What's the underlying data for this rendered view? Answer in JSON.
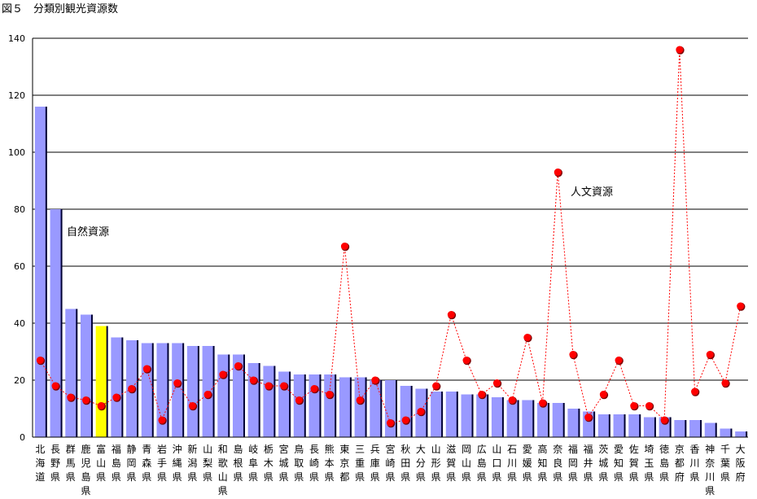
{
  "chart_data": {
    "type": "bar",
    "title": "図５　分類別観光資源数",
    "ylim": [
      0,
      140
    ],
    "yticks": [
      0,
      20,
      40,
      60,
      80,
      100,
      120,
      140
    ],
    "grid": true,
    "categories": [
      "北海道",
      "長野県",
      "群馬県",
      "鹿児島県",
      "富山県",
      "福島県",
      "静岡県",
      "青森県",
      "岩手県",
      "沖縄県",
      "新潟県",
      "山梨県",
      "和歌山県",
      "島根県",
      "岐阜県",
      "栃木県",
      "宮城県",
      "鳥取県",
      "長崎県",
      "熊本県",
      "東京都",
      "三重県",
      "兵庫県",
      "宮崎県",
      "秋田県",
      "大分県",
      "山形県",
      "滋賀県",
      "岡山県",
      "広島県",
      "山口県",
      "石川県",
      "愛媛県",
      "高知県",
      "奈良県",
      "福岡県",
      "福井県",
      "茨城県",
      "愛知県",
      "佐賀県",
      "埼玉県",
      "徳島県",
      "京都府",
      "香川県",
      "神奈川県",
      "千葉県",
      "大阪府"
    ],
    "series": [
      {
        "name": "自然資源",
        "type": "bar",
        "color": "#9999ff",
        "highlight_color": "#ffff00",
        "highlight_index": 4,
        "values": [
          116,
          80,
          45,
          43,
          39,
          35,
          34,
          33,
          33,
          33,
          32,
          32,
          29,
          29,
          26,
          25,
          23,
          22,
          22,
          22,
          21,
          21,
          20,
          20,
          18,
          17,
          16,
          16,
          15,
          15,
          14,
          13,
          13,
          12,
          12,
          10,
          9,
          8,
          8,
          8,
          7,
          7,
          6,
          6,
          5,
          3,
          2
        ]
      },
      {
        "name": "人文資源",
        "type": "line",
        "color": "#ff0000",
        "values": [
          27,
          18,
          14,
          13,
          11,
          14,
          17,
          24,
          6,
          19,
          11,
          15,
          22,
          25,
          20,
          18,
          18,
          13,
          17,
          15,
          67,
          13,
          20,
          5,
          6,
          9,
          18,
          43,
          27,
          15,
          19,
          13,
          35,
          12,
          93,
          29,
          7,
          15,
          27,
          11,
          11,
          6,
          136,
          16,
          29,
          19,
          46
        ]
      }
    ],
    "annotations": [
      "自然資源",
      "人文資源"
    ]
  }
}
